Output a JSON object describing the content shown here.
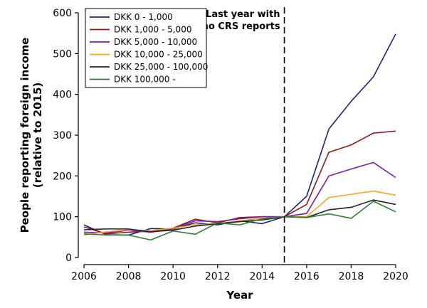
{
  "chart_data": {
    "type": "line",
    "title": "",
    "xlabel": "Year",
    "ylabel": "People reporting foreign income (relative to 2015)",
    "ylabel_lines": [
      "People reporting foreign income",
      "(relative to 2015)"
    ],
    "xlim": [
      2006,
      2020
    ],
    "ylim": [
      0,
      600
    ],
    "x_ticks": [
      2006,
      2008,
      2010,
      2012,
      2014,
      2016,
      2018,
      2020
    ],
    "x_tick_labels": [
      "2006",
      "2008",
      "2010",
      "2012",
      "2014",
      "2016",
      "2018",
      "2020"
    ],
    "y_ticks": [
      0,
      100,
      200,
      300,
      400,
      500,
      600
    ],
    "y_tick_labels": [
      "0",
      "100",
      "200",
      "300",
      "400",
      "500",
      "600"
    ],
    "grid": false,
    "legend": "top-left",
    "x": [
      2006,
      2007,
      2008,
      2009,
      2010,
      2011,
      2012,
      2013,
      2014,
      2015,
      2016,
      2017,
      2018,
      2019,
      2020
    ],
    "series": [
      {
        "name": "DKK 0 - 1,000",
        "color": "#1a237e",
        "values": [
          80,
          56,
          55,
          71,
          70,
          85,
          80,
          90,
          83,
          100,
          150,
          315,
          383,
          443,
          548
        ]
      },
      {
        "name": "DKK 1,000 - 5,000",
        "color": "#8b1a1a",
        "values": [
          75,
          58,
          62,
          65,
          72,
          94,
          85,
          98,
          100,
          100,
          130,
          258,
          276,
          305,
          310
        ]
      },
      {
        "name": "DKK 5,000 - 10,000",
        "color": "#7b1fa2",
        "values": [
          62,
          60,
          67,
          62,
          70,
          90,
          88,
          95,
          100,
          100,
          108,
          200,
          217,
          233,
          196
        ]
      },
      {
        "name": "DKK 10,000 - 25,000",
        "color": "#f5a623",
        "values": [
          55,
          63,
          68,
          66,
          72,
          80,
          83,
          90,
          96,
          100,
          100,
          147,
          155,
          163,
          153
        ]
      },
      {
        "name": "DKK 25,000 - 100,000",
        "color": "#222222",
        "values": [
          68,
          70,
          70,
          63,
          67,
          77,
          83,
          88,
          92,
          100,
          98,
          117,
          123,
          141,
          130
        ]
      },
      {
        "name": "DKK 100,000 -",
        "color": "#2e7d32",
        "values": [
          58,
          55,
          55,
          43,
          65,
          57,
          85,
          80,
          95,
          100,
          98,
          107,
          96,
          138,
          112
        ]
      }
    ],
    "annotations": [
      {
        "x": 2015,
        "style": "dashed-vertical-line",
        "text_lines": [
          "Last year with",
          "no CRS reports"
        ]
      }
    ]
  }
}
